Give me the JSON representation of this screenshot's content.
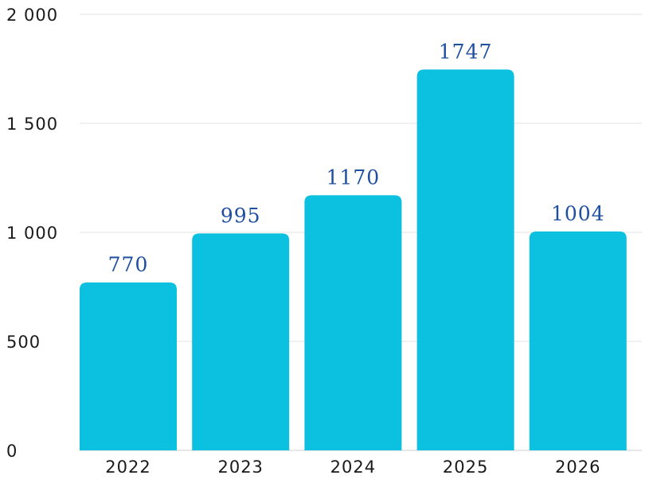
{
  "chart_data": {
    "type": "bar",
    "title": "",
    "xlabel": "",
    "ylabel": "",
    "categories": [
      "2022",
      "2023",
      "2024",
      "2025",
      "2026"
    ],
    "values": [
      770,
      995,
      1170,
      1747,
      1004
    ],
    "data_labels": [
      "770",
      "995",
      "1170",
      "1747",
      "1004"
    ],
    "ylim": [
      0,
      2000
    ],
    "y_ticks": [
      0,
      500,
      1000,
      1500,
      2000
    ],
    "y_tick_labels": [
      "0",
      "500",
      "1 000",
      "1 500",
      "2 000"
    ],
    "grid": true,
    "legend": "none",
    "colors": {
      "bar": "#0cc0df",
      "data_label": "#1e4fa0",
      "grid": "#e3e3e3",
      "text": "#1a1a1a"
    }
  }
}
